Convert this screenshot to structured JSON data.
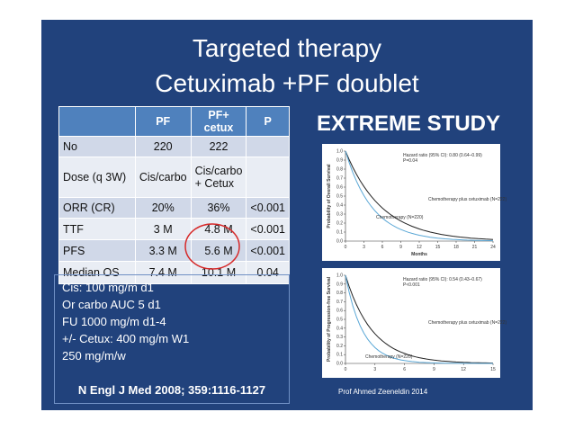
{
  "title": [
    "Targeted therapy",
    "Cetuximab +PF doublet"
  ],
  "table": {
    "header": [
      "PF",
      "PF+ cetux",
      "P"
    ],
    "rows": [
      [
        "No",
        "220",
        "222"
      ],
      [
        "Dose (q 3W)",
        "Cis/carbo",
        "Cis/carbo + Cetux"
      ],
      [
        "ORR (CR)",
        "20%",
        "36%",
        "<0.001"
      ],
      [
        "TTF",
        "3 M",
        "4.8 M",
        "<0.001"
      ],
      [
        "PFS",
        "3.3 M",
        "5.6 M",
        "<0.001"
      ],
      [
        "Median OS",
        "7.4 M",
        "10.1 M",
        "0.04"
      ]
    ]
  },
  "regimen": [
    "Cis: 100 mg/m d1",
    "Or carbo AUC 5 d1",
    "FU 1000 mg/m d1-4",
    "+/- Cetux:  400 mg/m W1",
    "250 mg/m/w"
  ],
  "citation": "N Engl J Med 2008; 359:1116-1127",
  "study": "EXTREME STUDY",
  "figures": [
    {
      "y_label": "Probability of Overall Survival",
      "x_label": "Months",
      "hazard": "Hazard ratio (95% CI): 0.80 (0.64–0.99)",
      "p": "P=0.04",
      "arm1": "Chemotherapy plus cetuximab (N=222)",
      "arm2": "Chemotherapy (N=220)",
      "xticks": [
        0,
        3,
        6,
        9,
        12,
        15,
        18,
        21,
        24
      ],
      "yticks": [
        "0.0",
        "0.1",
        "0.2",
        "0.3",
        "0.4",
        "0.5",
        "0.6",
        "0.7",
        "0.8",
        "0.9",
        "1.0"
      ]
    },
    {
      "y_label": "Probability of Progression-free Survival",
      "hazard": "Hazard ratio (95% CI): 0.54 (0.43–0.67)",
      "p": "P<0.001",
      "arm1": "Chemotherapy plus cetuximab (N=222)",
      "arm2": "Chemotherapy (N=220)",
      "xticks": [
        0,
        3,
        6,
        9,
        12,
        15
      ],
      "yticks": [
        "0.0",
        "0.1",
        "0.2",
        "0.3",
        "0.4",
        "0.5",
        "0.6",
        "0.7",
        "0.8",
        "0.9",
        "1.0"
      ]
    }
  ],
  "footer": "Prof Ahmed Zeeneldin 2014"
}
